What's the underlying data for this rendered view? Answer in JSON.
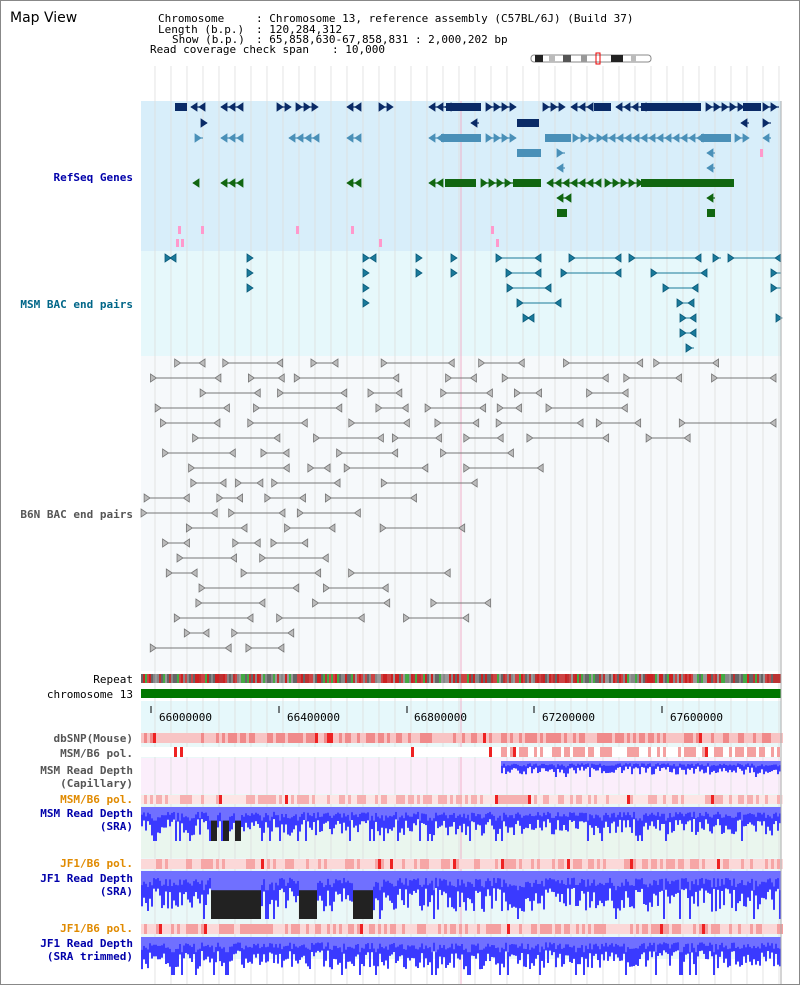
{
  "header": {
    "view_title": "Map View",
    "chromosome_label": "Chromosome",
    "chromosome_value": ": Chromosome 13, reference assembly (C57BL/6J) (Build 37)",
    "length_label": "Length (b.p.)",
    "length_value": ": 120,284,312",
    "show_label": "Show (b.p.)",
    "show_value": ": 65,858,630-67,858,831 : 2,000,202 bp",
    "coverage_label": "Read coverage check span",
    "coverage_value": ": 10,000"
  },
  "tracks": {
    "refseq": "RefSeq Genes",
    "msm_bac": "MSM BAC end pairs",
    "b6n_bac": "B6N BAC end pairs",
    "repeat": "Repeat",
    "chromosome": "chromosome 13",
    "dbsnp": "dbSNP(Mouse)",
    "msm_b6_pol_1": "MSM/B6 pol.",
    "msm_depth_cap_1": "MSM Read Depth",
    "msm_depth_cap_2": "(Capillary)",
    "msm_b6_pol_2": "MSM/B6 pol.",
    "msm_depth_sra_1": "MSM Read Depth",
    "msm_depth_sra_2": "(SRA)",
    "jf1_b6_pol_1": "JF1/B6 pol.",
    "jf1_depth_sra_1": "JF1 Read Depth",
    "jf1_depth_sra_2": "(SRA)",
    "jf1_b6_pol_2": "JF1/B6 pol.",
    "jf1_depth_trim_1": "JF1 Read Depth",
    "jf1_depth_trim_2": "(SRA trimmed)"
  },
  "ruler": {
    "ticks": [
      "66000000",
      "66400000",
      "66800000",
      "67200000",
      "67600000"
    ]
  },
  "colors": {
    "refseq_bg": "#d8eefa",
    "msm_bg": "#e6f8fb",
    "b6n_bg": "#f6f9fb",
    "gene_dark": "#0a2a66",
    "gene_mid": "#4a90b8",
    "gene_green": "#116611",
    "gene_pink": "#ff99cc",
    "chrom_green": "#007700",
    "depth_blue": "#3a3aff"
  }
}
